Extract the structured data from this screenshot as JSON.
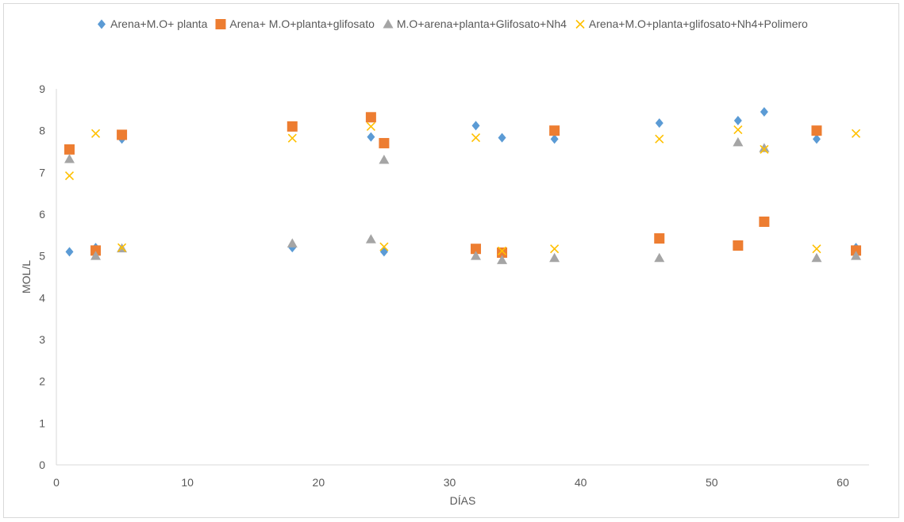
{
  "chart_data": {
    "type": "scatter",
    "xlabel": "DÍAS",
    "ylabel": "MOL/L",
    "xlim": [
      0,
      62
    ],
    "ylim": [
      0,
      9
    ],
    "xticks": [
      0,
      10,
      20,
      30,
      40,
      50,
      60
    ],
    "yticks": [
      0,
      1,
      2,
      3,
      4,
      5,
      6,
      7,
      8,
      9
    ],
    "grid": false,
    "legend_position": "top",
    "series": [
      {
        "name": "Arena+M.O+ planta",
        "marker": "diamond",
        "color": "#5B9BD5",
        "points": [
          [
            1,
            5.1
          ],
          [
            3,
            5.2
          ],
          [
            5,
            7.8
          ],
          [
            18,
            5.2
          ],
          [
            24,
            7.85
          ],
          [
            25,
            5.1
          ],
          [
            32,
            8.12
          ],
          [
            34,
            7.83
          ],
          [
            38,
            7.8
          ],
          [
            46,
            8.18
          ],
          [
            52,
            8.24
          ],
          [
            54,
            8.45
          ],
          [
            58,
            7.8
          ],
          [
            61,
            5.2
          ]
        ]
      },
      {
        "name": "Arena+ M.O+planta+glifosato",
        "marker": "square",
        "color": "#ED7D31",
        "points": [
          [
            1,
            7.55
          ],
          [
            3,
            5.13
          ],
          [
            5,
            7.9
          ],
          [
            18,
            8.1
          ],
          [
            24,
            8.32
          ],
          [
            25,
            7.7
          ],
          [
            32,
            5.17
          ],
          [
            34,
            5.08
          ],
          [
            38,
            8.0
          ],
          [
            46,
            5.42
          ],
          [
            52,
            5.25
          ],
          [
            54,
            5.82
          ],
          [
            58,
            8.0
          ],
          [
            61,
            5.13
          ]
        ]
      },
      {
        "name": "M.O+arena+planta+Glifosato+Nh4",
        "marker": "triangle",
        "color": "#A5A5A5",
        "points": [
          [
            1,
            7.32
          ],
          [
            3,
            5.0
          ],
          [
            5,
            5.18
          ],
          [
            18,
            5.3
          ],
          [
            24,
            5.4
          ],
          [
            25,
            7.3
          ],
          [
            32,
            5.0
          ],
          [
            34,
            4.9
          ],
          [
            38,
            4.95
          ],
          [
            46,
            4.95
          ],
          [
            52,
            7.72
          ],
          [
            54,
            7.58
          ],
          [
            58,
            4.95
          ],
          [
            61,
            5.0
          ]
        ]
      },
      {
        "name": "Arena+M.O+planta+glifosato+Nh4+Polimero",
        "marker": "x",
        "color": "#FFC000",
        "points": [
          [
            1,
            6.92
          ],
          [
            3,
            7.93
          ],
          [
            5,
            5.2
          ],
          [
            18,
            7.82
          ],
          [
            24,
            8.1
          ],
          [
            25,
            5.22
          ],
          [
            32,
            7.83
          ],
          [
            34,
            5.12
          ],
          [
            38,
            5.17
          ],
          [
            46,
            7.8
          ],
          [
            52,
            8.02
          ],
          [
            54,
            7.55
          ],
          [
            58,
            5.17
          ],
          [
            61,
            7.93
          ]
        ]
      }
    ]
  }
}
